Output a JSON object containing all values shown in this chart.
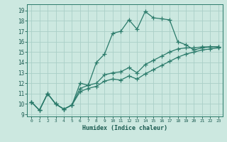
{
  "xlabel": "Humidex (Indice chaleur)",
  "bg_color": "#cce8e0",
  "line_color": "#2a7a6a",
  "grid_color": "#aacfc8",
  "xlim": [
    -0.5,
    23.5
  ],
  "ylim": [
    8.8,
    19.6
  ],
  "yticks": [
    9,
    10,
    11,
    12,
    13,
    14,
    15,
    16,
    17,
    18,
    19
  ],
  "xticks": [
    0,
    1,
    2,
    3,
    4,
    5,
    6,
    7,
    8,
    9,
    10,
    11,
    12,
    13,
    14,
    15,
    16,
    17,
    18,
    19,
    20,
    21,
    22,
    23
  ],
  "series1_x": [
    0,
    1,
    2,
    3,
    4,
    5,
    6,
    7,
    8,
    9,
    10,
    11,
    12,
    13,
    14,
    15,
    16,
    17,
    18,
    19,
    20,
    21,
    22,
    23
  ],
  "series1_y": [
    10.2,
    9.4,
    11.0,
    10.0,
    9.5,
    9.9,
    12.0,
    11.8,
    14.0,
    14.8,
    16.8,
    17.0,
    18.1,
    17.2,
    18.9,
    18.3,
    18.2,
    18.1,
    16.0,
    15.7,
    15.2,
    15.4,
    15.5,
    15.5
  ],
  "series2_x": [
    0,
    1,
    2,
    3,
    4,
    5,
    6,
    7,
    8,
    9,
    10,
    11,
    12,
    13,
    14,
    15,
    16,
    17,
    18,
    19,
    20,
    21,
    22,
    23
  ],
  "series2_y": [
    10.2,
    9.4,
    11.0,
    10.0,
    9.5,
    9.9,
    11.5,
    11.8,
    12.0,
    12.8,
    13.0,
    13.1,
    13.5,
    13.0,
    13.8,
    14.2,
    14.6,
    15.0,
    15.3,
    15.4,
    15.4,
    15.5,
    15.5,
    15.5
  ],
  "series3_x": [
    0,
    1,
    2,
    3,
    4,
    5,
    6,
    7,
    8,
    9,
    10,
    11,
    12,
    13,
    14,
    15,
    16,
    17,
    18,
    19,
    20,
    21,
    22,
    23
  ],
  "series3_y": [
    10.2,
    9.4,
    11.0,
    10.0,
    9.5,
    9.9,
    11.2,
    11.5,
    11.7,
    12.2,
    12.4,
    12.3,
    12.7,
    12.4,
    12.9,
    13.3,
    13.7,
    14.1,
    14.5,
    14.8,
    15.0,
    15.2,
    15.3,
    15.4
  ]
}
